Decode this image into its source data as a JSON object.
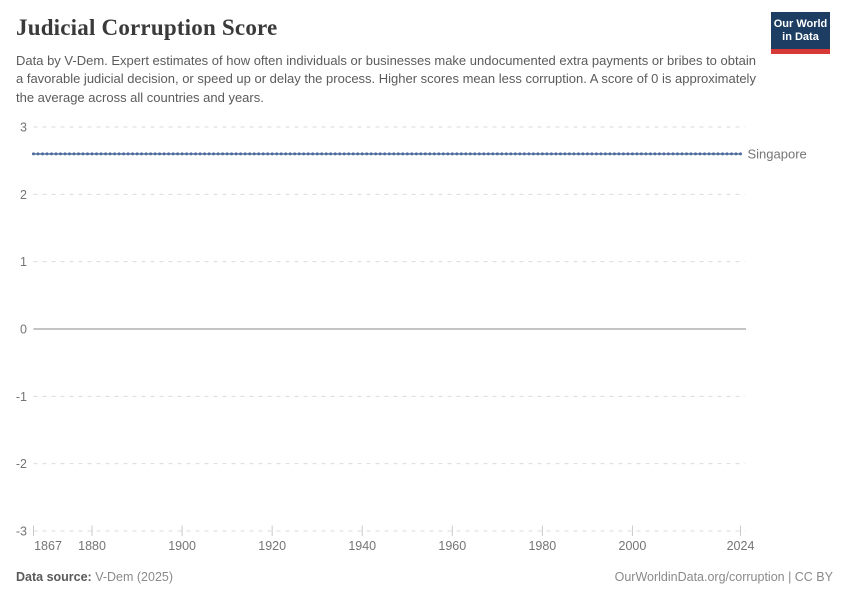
{
  "header": {
    "title": "Judicial Corruption Score",
    "subtitle": "Data by V-Dem. Expert estimates of how often individuals or businesses make undocumented extra payments or bribes to obtain a favorable judicial decision, or speed up or delay the process. Higher scores mean less corruption. A score of 0 is approximately the average across all countries and years.",
    "logo": {
      "line1": "Our World",
      "line2": "in Data",
      "bg_color": "#1d3d63",
      "stripe_color": "#d73a36"
    }
  },
  "chart_data": {
    "type": "line",
    "title": "Judicial Corruption Score",
    "xlabel": "",
    "ylabel": "",
    "xlim": [
      1867,
      2024
    ],
    "ylim": [
      -3,
      3
    ],
    "x_ticks": [
      1867,
      1880,
      1900,
      1920,
      1940,
      1960,
      1980,
      2000,
      2024
    ],
    "y_ticks": [
      3,
      2,
      1,
      0,
      -1,
      -2,
      -3
    ],
    "grid": "horizontal dashed, solid line at 0",
    "legend_position": "label at right end of line",
    "series": [
      {
        "name": "Singapore",
        "color": "#4C6A9C",
        "x_start": 1867,
        "x_end": 2024,
        "x_step": 1,
        "y_constant": 2.6,
        "note": "Flat annual series: every year from 1867 to 2024 has a value of approximately 2.6; drawn with a round marker at each yearly data point."
      }
    ],
    "sample_points": {
      "years": [
        1867,
        1880,
        1900,
        1920,
        1940,
        1960,
        1980,
        2000,
        2024
      ],
      "values": [
        2.6,
        2.6,
        2.6,
        2.6,
        2.6,
        2.6,
        2.6,
        2.6,
        2.6
      ]
    },
    "colors": {
      "gridline": "#dbdbdb",
      "zero_line": "#a0a0a0",
      "axis_tick": "#c9c9c9",
      "axis_text": "#757575"
    }
  },
  "footer": {
    "source_label": "Data source:",
    "source_value": "V-Dem (2025)",
    "attribution": "OurWorldinData.org/corruption | CC BY"
  }
}
